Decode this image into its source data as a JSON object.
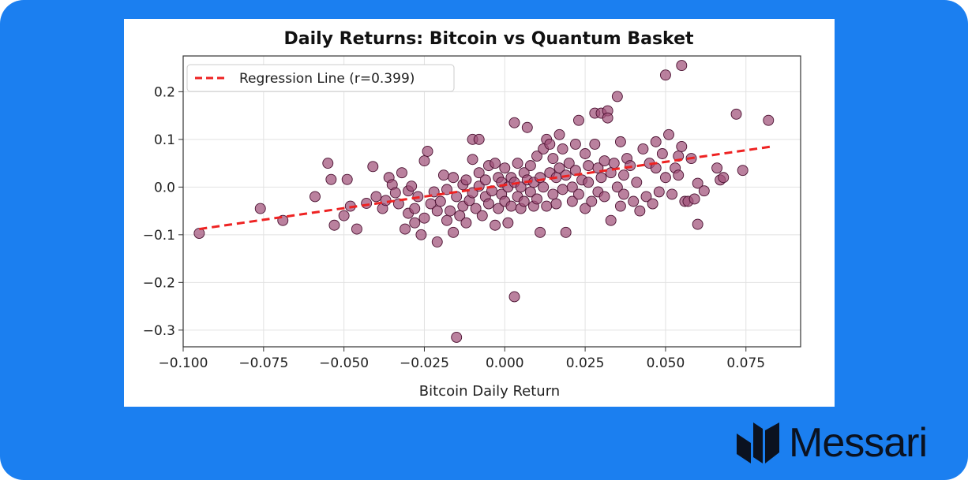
{
  "brand": {
    "name": "Messari",
    "icon": "messari-logo-icon"
  },
  "chart_data": {
    "type": "scatter",
    "title": "Daily Returns: Bitcoin vs Quantum Basket",
    "xlabel": "Bitcoin Daily Return",
    "ylabel": "",
    "xlim": [
      -0.1,
      0.092
    ],
    "ylim": [
      -0.335,
      0.275
    ],
    "x_ticks": [
      -0.1,
      -0.075,
      -0.05,
      -0.025,
      0.0,
      0.025,
      0.05,
      0.075
    ],
    "x_tick_labels": [
      "−0.100",
      "−0.075",
      "−0.050",
      "−0.025",
      "0.000",
      "0.025",
      "0.050",
      "0.075"
    ],
    "y_ticks": [
      0.2,
      0.1,
      0.0,
      -0.1,
      -0.2,
      -0.3
    ],
    "y_tick_labels": [
      "0.2",
      "0.1",
      "0.0",
      "−0.1",
      "−0.2",
      "−0.3"
    ],
    "grid": true,
    "legend_position": "top-left",
    "colors": {
      "points": "#a05078",
      "point_edge": "#4a1030",
      "regression": "#ee2222",
      "background": "#1b7ff0"
    },
    "regression": {
      "label": "Regression Line (r=0.399)",
      "x": [
        -0.095,
        0.083
      ],
      "y": [
        -0.088,
        0.085
      ]
    },
    "series": [
      {
        "points": [
          [
            -0.095,
            -0.097
          ],
          [
            -0.076,
            -0.045
          ],
          [
            -0.069,
            -0.07
          ],
          [
            -0.059,
            -0.02
          ],
          [
            -0.055,
            0.05
          ],
          [
            -0.054,
            0.016
          ],
          [
            -0.053,
            -0.08
          ],
          [
            -0.05,
            -0.06
          ],
          [
            -0.049,
            0.016
          ],
          [
            -0.048,
            -0.04
          ],
          [
            -0.046,
            -0.088
          ],
          [
            -0.043,
            -0.034
          ],
          [
            -0.041,
            0.043
          ],
          [
            -0.04,
            -0.02
          ],
          [
            -0.038,
            -0.045
          ],
          [
            -0.037,
            -0.028
          ],
          [
            -0.036,
            0.02
          ],
          [
            -0.035,
            0.005
          ],
          [
            -0.034,
            -0.012
          ],
          [
            -0.033,
            -0.035
          ],
          [
            -0.032,
            0.03
          ],
          [
            -0.031,
            -0.088
          ],
          [
            -0.03,
            -0.055
          ],
          [
            -0.03,
            -0.008
          ],
          [
            -0.029,
            0.002
          ],
          [
            -0.028,
            -0.075
          ],
          [
            -0.028,
            -0.045
          ],
          [
            -0.027,
            -0.02
          ],
          [
            -0.026,
            -0.1
          ],
          [
            -0.025,
            0.055
          ],
          [
            -0.025,
            -0.065
          ],
          [
            -0.024,
            0.075
          ],
          [
            -0.023,
            -0.035
          ],
          [
            -0.022,
            -0.01
          ],
          [
            -0.021,
            -0.115
          ],
          [
            -0.021,
            -0.05
          ],
          [
            -0.02,
            -0.03
          ],
          [
            -0.019,
            0.025
          ],
          [
            -0.018,
            -0.07
          ],
          [
            -0.018,
            -0.005
          ],
          [
            -0.017,
            -0.05
          ],
          [
            -0.016,
            -0.095
          ],
          [
            -0.016,
            0.02
          ],
          [
            -0.015,
            -0.315
          ],
          [
            -0.015,
            -0.02
          ],
          [
            -0.014,
            -0.06
          ],
          [
            -0.013,
            0.005
          ],
          [
            -0.013,
            -0.04
          ],
          [
            -0.012,
            0.015
          ],
          [
            -0.012,
            -0.075
          ],
          [
            -0.011,
            -0.028
          ],
          [
            -0.01,
            0.1
          ],
          [
            -0.01,
            0.058
          ],
          [
            -0.01,
            -0.012
          ],
          [
            -0.009,
            -0.045
          ],
          [
            -0.008,
            0.002
          ],
          [
            -0.008,
            0.03
          ],
          [
            -0.008,
            0.1
          ],
          [
            -0.007,
            -0.06
          ],
          [
            -0.006,
            -0.02
          ],
          [
            -0.006,
            0.015
          ],
          [
            -0.005,
            0.045
          ],
          [
            -0.005,
            -0.035
          ],
          [
            -0.004,
            -0.008
          ],
          [
            -0.003,
            0.05
          ],
          [
            -0.003,
            -0.08
          ],
          [
            -0.002,
            0.02
          ],
          [
            -0.002,
            -0.045
          ],
          [
            -0.001,
            0.01
          ],
          [
            -0.001,
            -0.015
          ],
          [
            0.0,
            0.04
          ],
          [
            0.0,
            -0.03
          ],
          [
            0.001,
            0.0
          ],
          [
            0.001,
            -0.075
          ],
          [
            0.002,
            0.02
          ],
          [
            0.002,
            -0.04
          ],
          [
            0.003,
            0.135
          ],
          [
            0.003,
            -0.23
          ],
          [
            0.003,
            0.01
          ],
          [
            0.004,
            -0.02
          ],
          [
            0.004,
            0.05
          ],
          [
            0.005,
            -0.045
          ],
          [
            0.005,
            0.0
          ],
          [
            0.006,
            0.03
          ],
          [
            0.006,
            -0.03
          ],
          [
            0.007,
            0.015
          ],
          [
            0.007,
            0.125
          ],
          [
            0.008,
            -0.01
          ],
          [
            0.008,
            0.045
          ],
          [
            0.009,
            -0.04
          ],
          [
            0.009,
            0.01
          ],
          [
            0.01,
            0.065
          ],
          [
            0.01,
            -0.025
          ],
          [
            0.011,
            0.02
          ],
          [
            0.011,
            -0.095
          ],
          [
            0.012,
            0.08
          ],
          [
            0.012,
            0.0
          ],
          [
            0.013,
            0.1
          ],
          [
            0.013,
            -0.04
          ],
          [
            0.014,
            0.03
          ],
          [
            0.014,
            0.09
          ],
          [
            0.015,
            -0.015
          ],
          [
            0.015,
            0.06
          ],
          [
            0.016,
            0.02
          ],
          [
            0.016,
            -0.035
          ],
          [
            0.017,
            0.04
          ],
          [
            0.017,
            0.11
          ],
          [
            0.018,
            -0.005
          ],
          [
            0.018,
            0.08
          ],
          [
            0.019,
            0.025
          ],
          [
            0.019,
            -0.095
          ],
          [
            0.02,
            0.05
          ],
          [
            0.021,
            0.0
          ],
          [
            0.021,
            -0.03
          ],
          [
            0.022,
            0.09
          ],
          [
            0.022,
            0.035
          ],
          [
            0.023,
            0.14
          ],
          [
            0.023,
            -0.015
          ],
          [
            0.024,
            0.015
          ],
          [
            0.025,
            0.07
          ],
          [
            0.025,
            -0.045
          ],
          [
            0.026,
            0.045
          ],
          [
            0.026,
            0.01
          ],
          [
            0.027,
            -0.03
          ],
          [
            0.028,
            0.155
          ],
          [
            0.028,
            0.09
          ],
          [
            0.029,
            0.04
          ],
          [
            0.029,
            -0.01
          ],
          [
            0.03,
            0.02
          ],
          [
            0.03,
            0.155
          ],
          [
            0.031,
            0.055
          ],
          [
            0.031,
            -0.02
          ],
          [
            0.032,
            0.16
          ],
          [
            0.032,
            0.145
          ],
          [
            0.033,
            0.03
          ],
          [
            0.033,
            -0.07
          ],
          [
            0.034,
            0.05
          ],
          [
            0.035,
            0.19
          ],
          [
            0.035,
            0.0
          ],
          [
            0.036,
            -0.04
          ],
          [
            0.036,
            0.095
          ],
          [
            0.037,
            0.025
          ],
          [
            0.037,
            -0.015
          ],
          [
            0.038,
            0.06
          ],
          [
            0.039,
            0.045
          ],
          [
            0.04,
            -0.03
          ],
          [
            0.041,
            0.01
          ],
          [
            0.042,
            -0.05
          ],
          [
            0.043,
            0.08
          ],
          [
            0.044,
            -0.02
          ],
          [
            0.045,
            0.05
          ],
          [
            0.046,
            -0.035
          ],
          [
            0.047,
            0.095
          ],
          [
            0.047,
            0.04
          ],
          [
            0.048,
            -0.01
          ],
          [
            0.049,
            0.07
          ],
          [
            0.05,
            0.02
          ],
          [
            0.05,
            0.235
          ],
          [
            0.051,
            0.11
          ],
          [
            0.052,
            -0.015
          ],
          [
            0.053,
            0.04
          ],
          [
            0.054,
            0.065
          ],
          [
            0.054,
            0.025
          ],
          [
            0.055,
            0.085
          ],
          [
            0.055,
            0.255
          ],
          [
            0.056,
            -0.03
          ],
          [
            0.057,
            -0.03
          ],
          [
            0.058,
            0.06
          ],
          [
            0.059,
            -0.025
          ],
          [
            0.06,
            0.008
          ],
          [
            0.06,
            -0.078
          ],
          [
            0.062,
            -0.008
          ],
          [
            0.066,
            0.04
          ],
          [
            0.067,
            0.015
          ],
          [
            0.068,
            0.02
          ],
          [
            0.072,
            0.153
          ],
          [
            0.074,
            0.035
          ],
          [
            0.082,
            0.14
          ]
        ]
      }
    ]
  }
}
